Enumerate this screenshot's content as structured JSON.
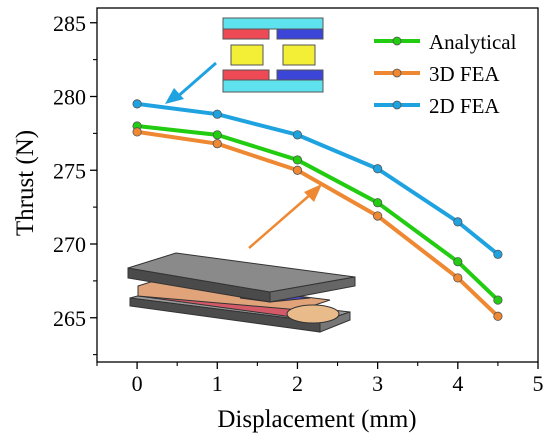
{
  "chart_data": {
    "type": "line",
    "title": "",
    "xlabel": "Displacement (mm)",
    "ylabel": "Thrust (N)",
    "xlim": [
      -0.5,
      5
    ],
    "ylim": [
      262,
      286
    ],
    "x_ticks": [
      0,
      1,
      2,
      3,
      4,
      5
    ],
    "y_ticks": [
      265,
      270,
      275,
      280,
      285
    ],
    "grid": false,
    "legend_position": "top-right",
    "series": [
      {
        "name": "Analytical",
        "color": "#22cc11",
        "x": [
          0,
          1,
          2,
          3,
          4,
          4.5
        ],
        "values": [
          278.0,
          277.4,
          275.7,
          272.8,
          268.8,
          266.2
        ]
      },
      {
        "name": "3D FEA",
        "color": "#ee8833",
        "x": [
          0,
          1,
          2,
          3,
          4,
          4.5
        ],
        "values": [
          277.6,
          276.8,
          275.0,
          271.9,
          267.7,
          265.1
        ]
      },
      {
        "name": "2D FEA",
        "color": "#1fa2e0",
        "x": [
          0,
          1,
          2,
          3,
          4,
          4.5
        ],
        "values": [
          279.5,
          278.8,
          277.4,
          275.1,
          271.5,
          269.3
        ]
      }
    ]
  },
  "annotations": {
    "inset_2d_diagram": "2D cross-section model",
    "inset_3d_model": "3D model"
  }
}
